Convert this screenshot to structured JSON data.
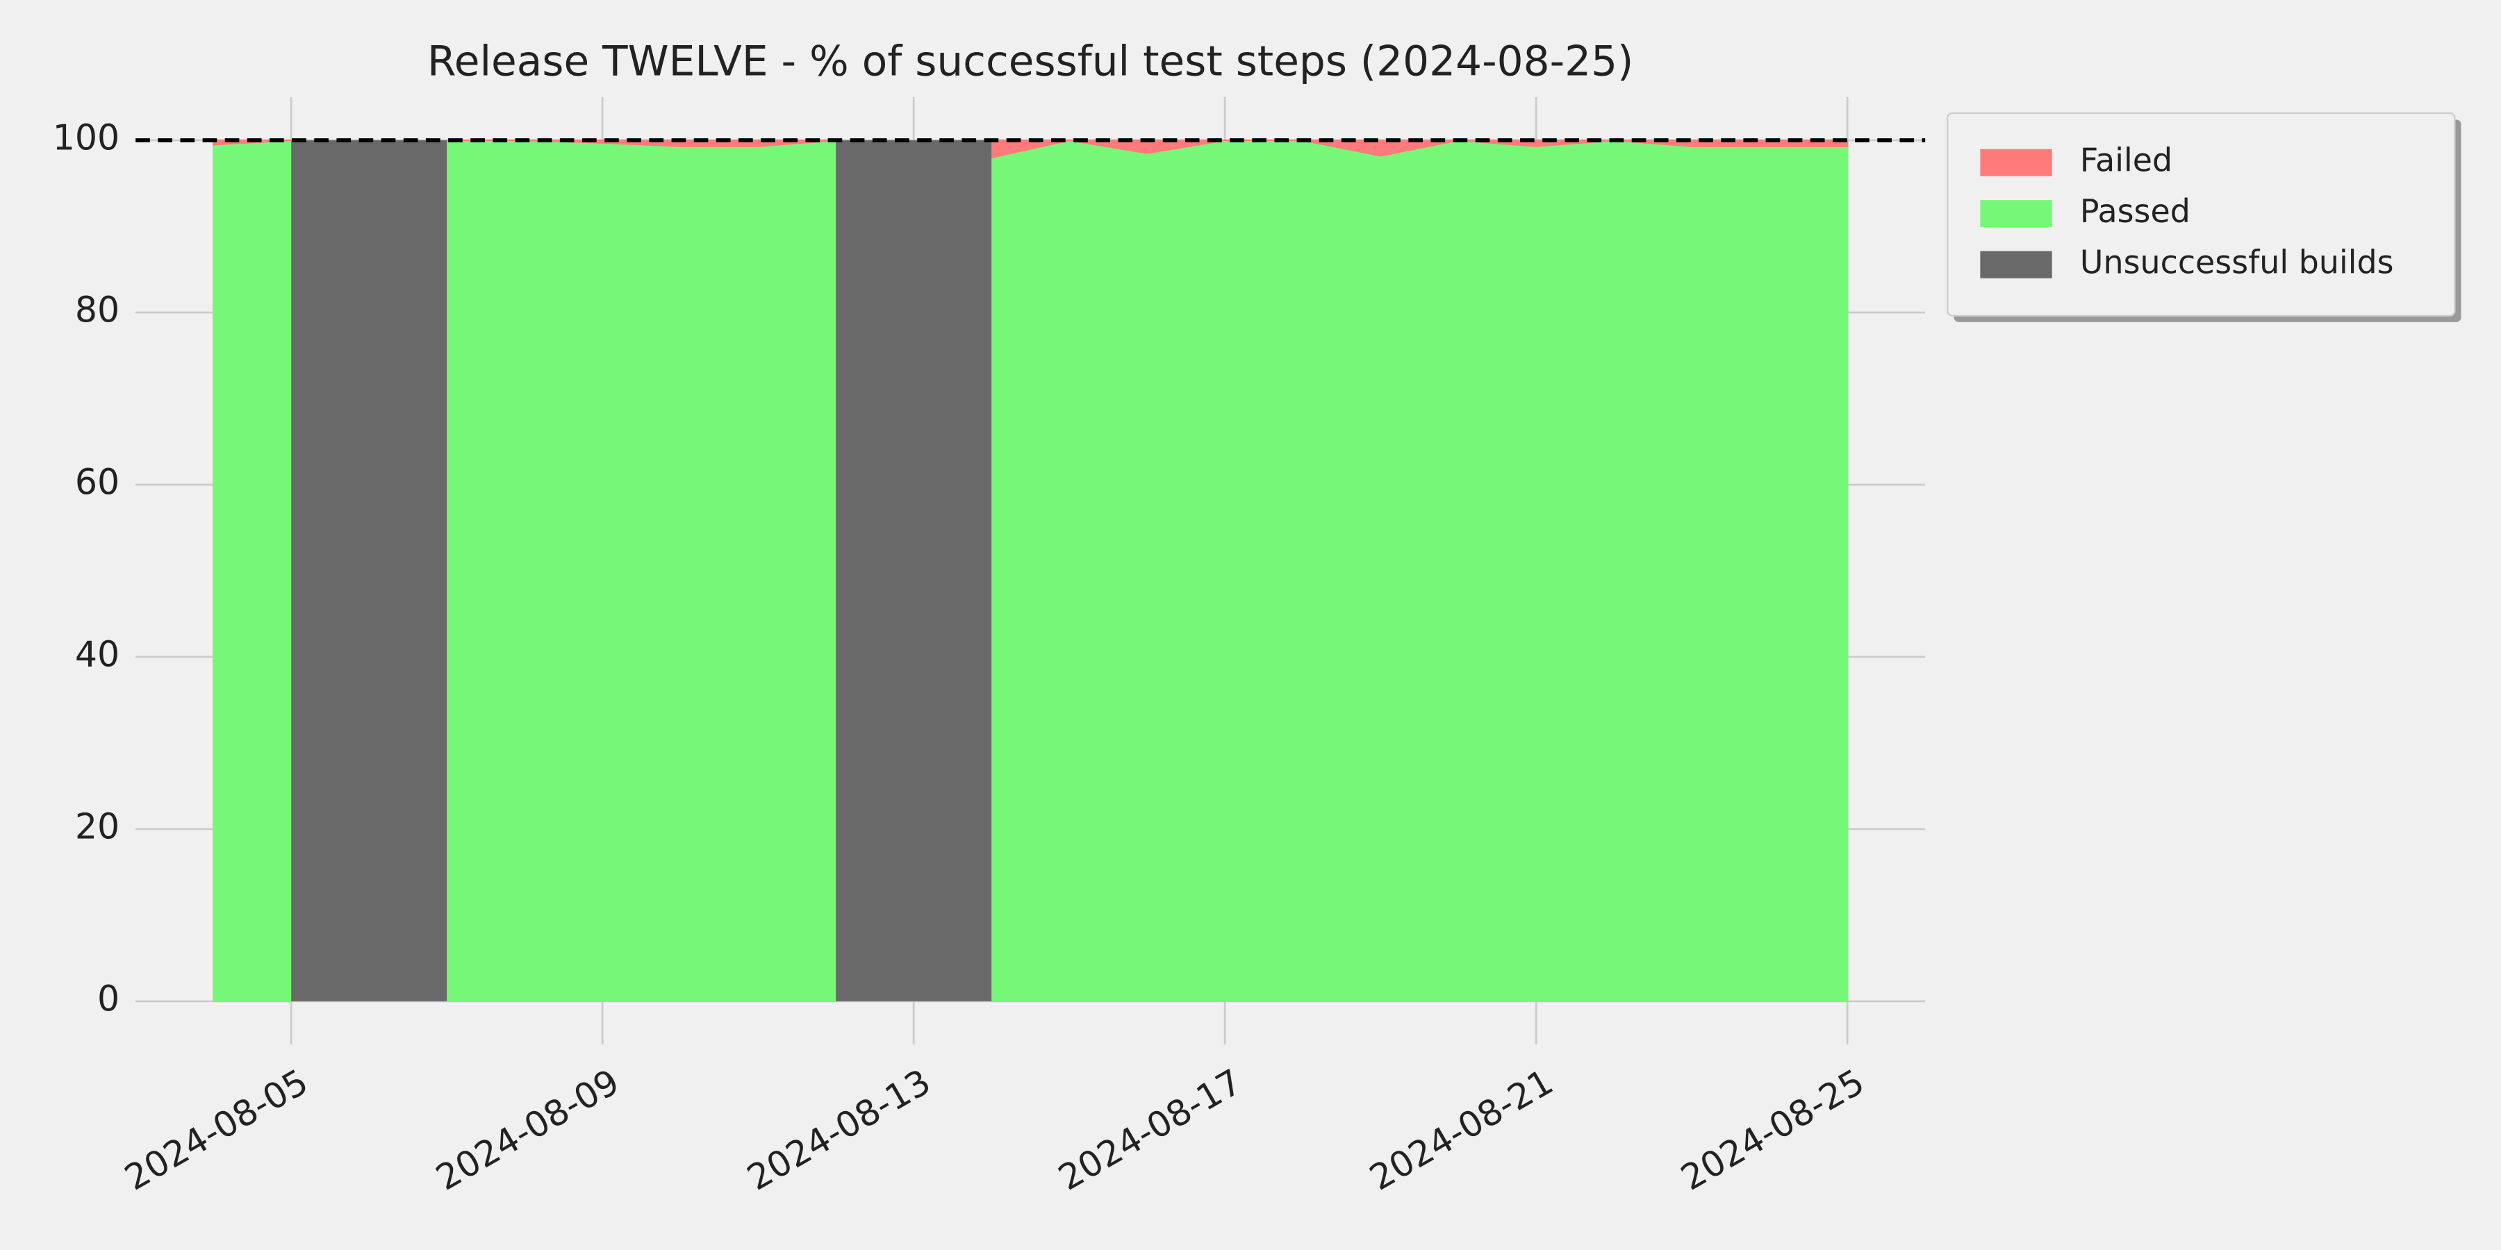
{
  "chart_data": {
    "type": "stacked_area",
    "title": "Release TWELVE - % of successful test steps (2024-08-25)",
    "x": [
      "2024-08-04",
      "2024-08-05",
      "2024-08-06",
      "2024-08-07",
      "2024-08-08",
      "2024-08-09",
      "2024-08-10",
      "2024-08-11",
      "2024-08-12",
      "2024-08-13",
      "2024-08-14",
      "2024-08-15",
      "2024-08-16",
      "2024-08-17",
      "2024-08-18",
      "2024-08-19",
      "2024-08-20",
      "2024-08-21",
      "2024-08-22",
      "2024-08-23",
      "2024-08-24",
      "2024-08-25"
    ],
    "series": [
      {
        "name": "Failed",
        "color": "#ff7b7b",
        "values": [
          0.5,
          0,
          null,
          0,
          0,
          0.3,
          0.7,
          0.7,
          0,
          null,
          2,
          0,
          1.5,
          0,
          0,
          1.8,
          0,
          0.7,
          0,
          0.7,
          0.7,
          0.7
        ]
      },
      {
        "name": "Passed",
        "color": "#77f777",
        "values": [
          99.5,
          100,
          null,
          100,
          100,
          99.7,
          99.3,
          99.3,
          100,
          null,
          98,
          100,
          98.5,
          100,
          100,
          98.2,
          100,
          99.3,
          100,
          99.3,
          99.3,
          99.3
        ]
      },
      {
        "name": "Unsuccessful builds",
        "color": "#696969",
        "values": [
          null,
          null,
          100,
          null,
          null,
          null,
          null,
          null,
          null,
          100,
          null,
          null,
          null,
          null,
          null,
          null,
          null,
          null,
          null,
          null,
          null,
          null
        ]
      }
    ],
    "reference_line": 100,
    "xlim": [
      "2024-08-03",
      "2024-08-26"
    ],
    "xticks": [
      "2024-08-05",
      "2024-08-09",
      "2024-08-13",
      "2024-08-17",
      "2024-08-21",
      "2024-08-25"
    ],
    "ylim": [
      -5,
      105
    ],
    "yticks": [
      0,
      20,
      40,
      60,
      80,
      100
    ],
    "grid": true,
    "legend": "outside-right"
  }
}
